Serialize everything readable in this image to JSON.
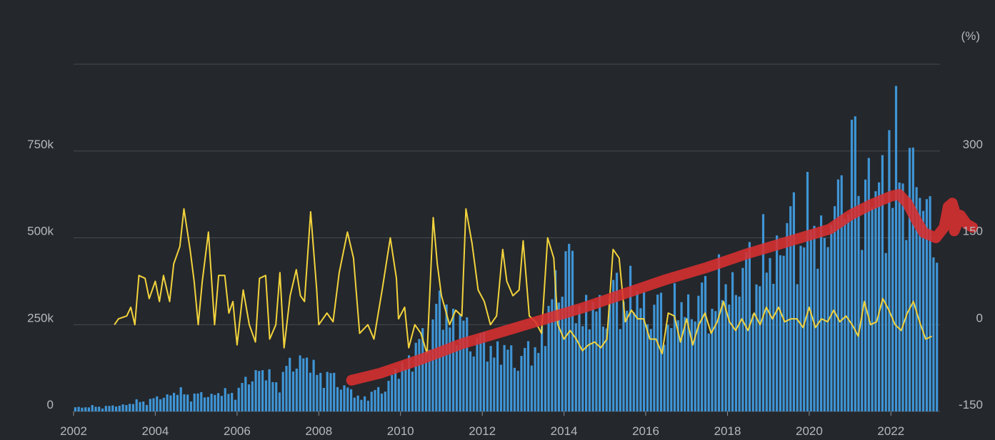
{
  "chart_data": {
    "type": "bar",
    "title": "",
    "xlabel": "",
    "ylabel": "",
    "x_range": [
      2002.0,
      2023.2
    ],
    "x_ticks": [
      "2002",
      "2004",
      "2006",
      "2008",
      "2010",
      "2012",
      "2014",
      "2016",
      "2018",
      "2020",
      "2022"
    ],
    "y_left": {
      "range": [
        0,
        1000000
      ],
      "ticks": [
        "0",
        "250k",
        "500k",
        "750k"
      ]
    },
    "y_right": {
      "range": [
        -150,
        450
      ],
      "ticks": [
        "-150",
        "0",
        "150",
        "300"
      ],
      "unit": "(%)"
    },
    "grid": true,
    "colors": {
      "background": "#24272b",
      "bars": "#3f95d6",
      "growth_line": "#f2d33d",
      "trend_overlay": "#d93030",
      "grid": "#464a50",
      "text": "#b5b9be"
    },
    "series": [
      {
        "type": "bar",
        "axis": "left",
        "anchors": [
          [
            2002.0,
            12000
          ],
          [
            2003.0,
            15000
          ],
          [
            2004.0,
            35000
          ],
          [
            2004.5,
            55000
          ],
          [
            2005.0,
            45000
          ],
          [
            2006.0,
            55000
          ],
          [
            2006.5,
            120000
          ],
          [
            2007.0,
            80000
          ],
          [
            2007.5,
            160000
          ],
          [
            2008.0,
            110000
          ],
          [
            2008.5,
            85000
          ],
          [
            2009.0,
            35000
          ],
          [
            2009.5,
            60000
          ],
          [
            2010.0,
            120000
          ],
          [
            2010.5,
            190000
          ],
          [
            2011.0,
            300000
          ],
          [
            2011.5,
            240000
          ],
          [
            2012.0,
            190000
          ],
          [
            2012.5,
            170000
          ],
          [
            2013.0,
            150000
          ],
          [
            2013.5,
            210000
          ],
          [
            2014.0,
            450000
          ],
          [
            2014.5,
            270000
          ],
          [
            2015.0,
            300000
          ],
          [
            2015.5,
            340000
          ],
          [
            2016.0,
            300000
          ],
          [
            2016.5,
            270000
          ],
          [
            2017.0,
            300000
          ],
          [
            2017.5,
            320000
          ],
          [
            2018.0,
            350000
          ],
          [
            2018.5,
            400000
          ],
          [
            2019.0,
            420000
          ],
          [
            2019.5,
            520000
          ],
          [
            2020.0,
            540000
          ],
          [
            2020.5,
            500000
          ],
          [
            2021.0,
            650000
          ],
          [
            2021.5,
            600000
          ],
          [
            2022.0,
            650000
          ],
          [
            2022.5,
            700000
          ],
          [
            2023.0,
            470000
          ],
          [
            2023.2,
            480000
          ]
        ],
        "peaks": [
          [
            2019.95,
            690000
          ],
          [
            2020.8,
            680000
          ],
          [
            2021.05,
            840000
          ],
          [
            2021.15,
            850000
          ],
          [
            2021.45,
            730000
          ],
          [
            2021.95,
            810000
          ],
          [
            2022.55,
            760000
          ],
          [
            2022.95,
            620000
          ]
        ]
      },
      {
        "type": "line",
        "axis": "right",
        "points": [
          [
            2003.0,
            0
          ],
          [
            2003.1,
            10
          ],
          [
            2003.3,
            15
          ],
          [
            2003.4,
            30
          ],
          [
            2003.5,
            0
          ],
          [
            2003.6,
            85
          ],
          [
            2003.75,
            80
          ],
          [
            2003.85,
            45
          ],
          [
            2004.0,
            75
          ],
          [
            2004.1,
            40
          ],
          [
            2004.2,
            85
          ],
          [
            2004.35,
            40
          ],
          [
            2004.45,
            105
          ],
          [
            2004.6,
            135
          ],
          [
            2004.7,
            200
          ],
          [
            2004.85,
            130
          ],
          [
            2004.95,
            75
          ],
          [
            2005.05,
            0
          ],
          [
            2005.15,
            75
          ],
          [
            2005.3,
            160
          ],
          [
            2005.45,
            0
          ],
          [
            2005.55,
            85
          ],
          [
            2005.7,
            85
          ],
          [
            2005.8,
            20
          ],
          [
            2005.9,
            40
          ],
          [
            2006.0,
            -35
          ],
          [
            2006.15,
            60
          ],
          [
            2006.3,
            0
          ],
          [
            2006.45,
            -30
          ],
          [
            2006.55,
            80
          ],
          [
            2006.7,
            85
          ],
          [
            2006.8,
            -25
          ],
          [
            2006.95,
            0
          ],
          [
            2007.05,
            90
          ],
          [
            2007.15,
            -40
          ],
          [
            2007.3,
            50
          ],
          [
            2007.45,
            95
          ],
          [
            2007.55,
            50
          ],
          [
            2007.65,
            40
          ],
          [
            2007.8,
            195
          ],
          [
            2007.95,
            60
          ],
          [
            2008.0,
            0
          ],
          [
            2008.2,
            20
          ],
          [
            2008.35,
            5
          ],
          [
            2008.5,
            90
          ],
          [
            2008.7,
            160
          ],
          [
            2008.85,
            115
          ],
          [
            2009.0,
            -15
          ],
          [
            2009.2,
            0
          ],
          [
            2009.35,
            -25
          ],
          [
            2009.55,
            60
          ],
          [
            2009.75,
            150
          ],
          [
            2009.9,
            80
          ],
          [
            2009.95,
            10
          ],
          [
            2010.1,
            30
          ],
          [
            2010.2,
            -40
          ],
          [
            2010.35,
            0
          ],
          [
            2010.5,
            -15
          ],
          [
            2010.65,
            -50
          ],
          [
            2010.8,
            185
          ],
          [
            2010.9,
            105
          ],
          [
            2011.0,
            50
          ],
          [
            2011.2,
            0
          ],
          [
            2011.35,
            25
          ],
          [
            2011.5,
            15
          ],
          [
            2011.6,
            200
          ],
          [
            2011.75,
            140
          ],
          [
            2011.9,
            60
          ],
          [
            2012.05,
            40
          ],
          [
            2012.2,
            0
          ],
          [
            2012.35,
            15
          ],
          [
            2012.5,
            130
          ],
          [
            2012.6,
            75
          ],
          [
            2012.75,
            50
          ],
          [
            2012.9,
            60
          ],
          [
            2013.0,
            145
          ],
          [
            2013.15,
            15
          ],
          [
            2013.3,
            5
          ],
          [
            2013.45,
            -15
          ],
          [
            2013.6,
            150
          ],
          [
            2013.75,
            115
          ],
          [
            2013.85,
            0
          ],
          [
            2014.0,
            -25
          ],
          [
            2014.15,
            -10
          ],
          [
            2014.3,
            -25
          ],
          [
            2014.45,
            -45
          ],
          [
            2014.6,
            -35
          ],
          [
            2014.75,
            -30
          ],
          [
            2014.9,
            -40
          ],
          [
            2015.05,
            -25
          ],
          [
            2015.2,
            130
          ],
          [
            2015.35,
            115
          ],
          [
            2015.5,
            5
          ],
          [
            2015.65,
            25
          ],
          [
            2015.8,
            10
          ],
          [
            2015.95,
            10
          ],
          [
            2016.1,
            -25
          ],
          [
            2016.25,
            -25
          ],
          [
            2016.4,
            -50
          ],
          [
            2016.55,
            20
          ],
          [
            2016.7,
            15
          ],
          [
            2016.85,
            -30
          ],
          [
            2017.0,
            10
          ],
          [
            2017.15,
            -35
          ],
          [
            2017.3,
            0
          ],
          [
            2017.45,
            20
          ],
          [
            2017.6,
            -15
          ],
          [
            2017.75,
            5
          ],
          [
            2017.9,
            40
          ],
          [
            2018.05,
            5
          ],
          [
            2018.2,
            -10
          ],
          [
            2018.35,
            10
          ],
          [
            2018.5,
            -10
          ],
          [
            2018.65,
            20
          ],
          [
            2018.8,
            0
          ],
          [
            2018.95,
            30
          ],
          [
            2019.1,
            10
          ],
          [
            2019.25,
            30
          ],
          [
            2019.4,
            5
          ],
          [
            2019.55,
            10
          ],
          [
            2019.7,
            10
          ],
          [
            2019.85,
            -5
          ],
          [
            2020.0,
            30
          ],
          [
            2020.15,
            -5
          ],
          [
            2020.3,
            10
          ],
          [
            2020.45,
            5
          ],
          [
            2020.6,
            25
          ],
          [
            2020.75,
            5
          ],
          [
            2020.9,
            15
          ],
          [
            2021.05,
            0
          ],
          [
            2021.2,
            -20
          ],
          [
            2021.35,
            40
          ],
          [
            2021.5,
            0
          ],
          [
            2021.65,
            5
          ],
          [
            2021.8,
            45
          ],
          [
            2021.95,
            25
          ],
          [
            2022.1,
            0
          ],
          [
            2022.25,
            -10
          ],
          [
            2022.4,
            20
          ],
          [
            2022.55,
            40
          ],
          [
            2022.7,
            5
          ],
          [
            2022.85,
            -25
          ],
          [
            2023.0,
            -20
          ]
        ]
      }
    ],
    "annotation": {
      "type": "hand-drawn-stroke",
      "axis": "left",
      "points": [
        [
          2008.8,
          90000
        ],
        [
          2009.5,
          110000
        ],
        [
          2010.5,
          150000
        ],
        [
          2011.5,
          195000
        ],
        [
          2012.5,
          230000
        ],
        [
          2013.5,
          265000
        ],
        [
          2014.5,
          300000
        ],
        [
          2015.5,
          340000
        ],
        [
          2016.5,
          380000
        ],
        [
          2017.5,
          415000
        ],
        [
          2018.5,
          455000
        ],
        [
          2019.5,
          490000
        ],
        [
          2020.5,
          525000
        ],
        [
          2021.0,
          565000
        ],
        [
          2021.5,
          595000
        ],
        [
          2022.0,
          620000
        ],
        [
          2022.2,
          625000
        ],
        [
          2022.4,
          600000
        ],
        [
          2022.6,
          555000
        ],
        [
          2022.8,
          515000
        ],
        [
          2023.1,
          500000
        ],
        [
          2023.3,
          530000
        ],
        [
          2023.4,
          590000
        ],
        [
          2023.5,
          600000
        ],
        [
          2023.6,
          560000
        ],
        [
          2023.55,
          520000
        ],
        [
          2023.7,
          565000
        ],
        [
          2023.85,
          540000
        ],
        [
          2024.0,
          530000
        ]
      ]
    }
  }
}
